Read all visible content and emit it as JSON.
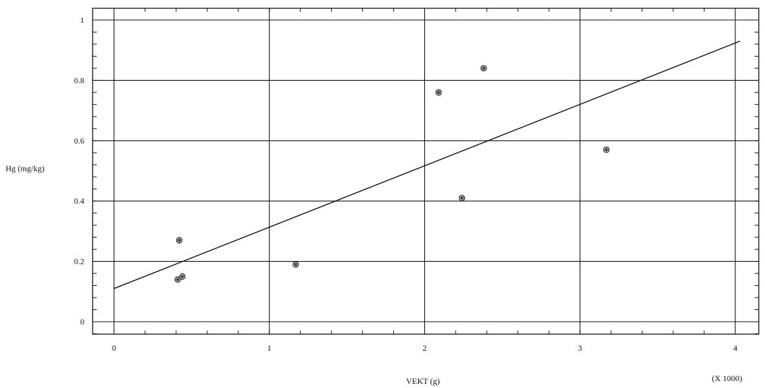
{
  "chart_data": {
    "type": "scatter",
    "xlabel": "VEKT (g)",
    "ylabel": "Hg (mg/kg)",
    "x_multiplier_label": "(X 1000)",
    "xlim": [
      0,
      4.2
    ],
    "ylim": [
      -0.04,
      1.04
    ],
    "x_ticks": [
      0,
      1,
      2,
      3,
      4
    ],
    "y_ticks": [
      0,
      0.2,
      0.4,
      0.6,
      0.8,
      1
    ],
    "x_tick_labels": [
      "0",
      "1",
      "2",
      "3",
      "4"
    ],
    "y_tick_labels": [
      "0",
      "0.2",
      "0.4",
      "0.6",
      "0.8",
      "1"
    ],
    "grid": true,
    "series": [
      {
        "points": [
          {
            "x": 0.42,
            "y": 0.27
          },
          {
            "x": 0.41,
            "y": 0.14
          },
          {
            "x": 0.44,
            "y": 0.15
          },
          {
            "x": 1.17,
            "y": 0.19
          },
          {
            "x": 2.09,
            "y": 0.76
          },
          {
            "x": 2.24,
            "y": 0.41
          },
          {
            "x": 2.38,
            "y": 0.84
          },
          {
            "x": 3.17,
            "y": 0.57
          }
        ]
      }
    ],
    "fit_line": {
      "x": [
        0,
        4.03
      ],
      "y": [
        0.11,
        0.93
      ]
    }
  }
}
